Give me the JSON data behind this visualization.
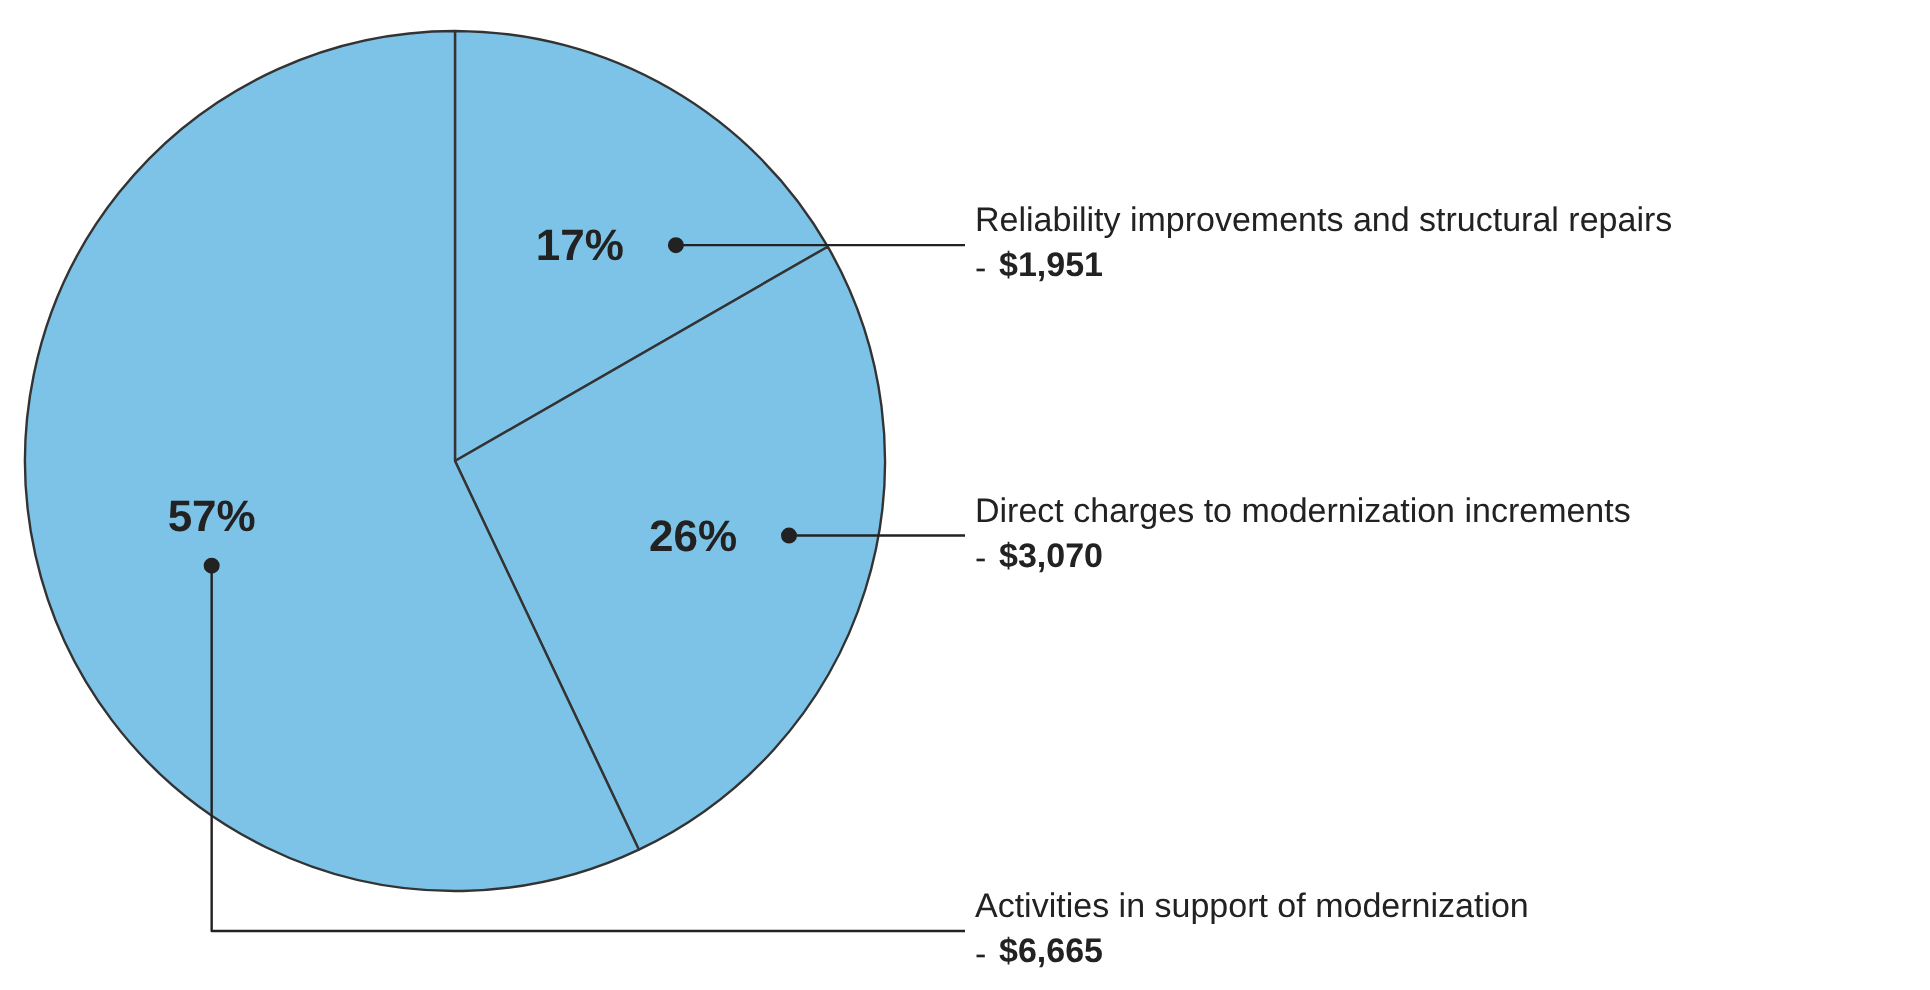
{
  "chart_data": {
    "type": "pie",
    "categories": [
      "Reliability improvements and structural repairs\n-",
      "Direct charges to modernization increments\n-",
      "Activities in support of modernization\n-"
    ],
    "values": [
      1951,
      3070,
      6665
    ],
    "colors": [
      "#7dc3e7",
      "#7dc3e7",
      "#7dc3e7"
    ],
    "value_labels": [
      "$1,951",
      "$3,070",
      "$6,665"
    ],
    "annotations": [
      "17%",
      "26%",
      "57%"
    ]
  }
}
